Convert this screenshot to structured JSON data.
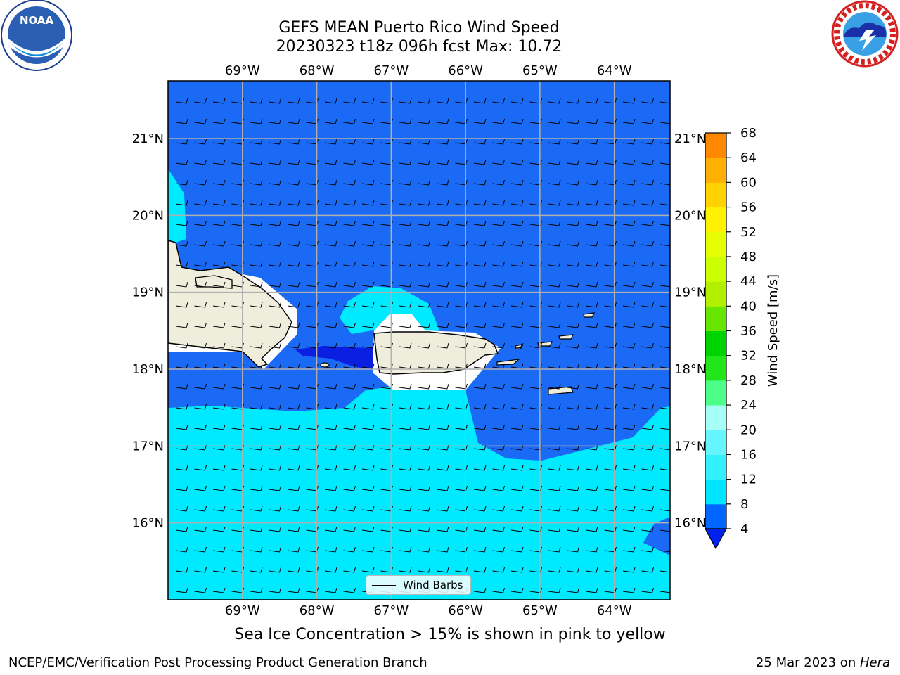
{
  "title_line1": "GEFS MEAN Puerto Rico Wind Speed",
  "title_line2": "20230323 t18z 096h fcst   Max: 10.72",
  "bottom_note": "Sea Ice Concentration > 15% is shown in pink to yellow",
  "footer_left": "NCEP/EMC/Verification Post Processing Product Generation Branch",
  "footer_date": "25 Mar 2023 on ",
  "footer_machine": "Hera",
  "legend_label": "Wind Barbs",
  "colorbar_label": "Wind Speed [m/s]",
  "noaa_logo_text": "NOAA",
  "map": {
    "lon_labels": [
      "69°W",
      "68°W",
      "67°W",
      "66°W",
      "65°W",
      "64°W"
    ],
    "lat_labels": [
      "21°N",
      "20°N",
      "19°N",
      "18°N",
      "17°N",
      "16°N"
    ],
    "lon_values": [
      -69,
      -68,
      -67,
      -66,
      -65,
      -64
    ],
    "lat_values": [
      21,
      20,
      19,
      18,
      17,
      16
    ],
    "lon_range": [
      -70.0,
      -63.25
    ],
    "lat_range": [
      15.0,
      21.75
    ]
  },
  "colorbar": {
    "ticks": [
      "68",
      "64",
      "60",
      "56",
      "52",
      "48",
      "44",
      "40",
      "36",
      "32",
      "28",
      "24",
      "20",
      "16",
      "12",
      "8",
      "4"
    ],
    "levels": [
      4,
      8,
      12,
      16,
      20,
      24,
      28,
      32,
      36,
      40,
      44,
      48,
      52,
      56,
      60,
      64,
      68
    ],
    "colors": [
      "#0066ff",
      "#00e5ff",
      "#33f0ff",
      "#66f5ff",
      "#a6fff7",
      "#4dff88",
      "#22e61a",
      "#00d400",
      "#66e600",
      "#b2f000",
      "#ccff00",
      "#e6ff00",
      "#fff200",
      "#ffd200",
      "#ffb000",
      "#ff8800",
      "#ff5a00",
      "#ff2e00",
      "#ff0000"
    ],
    "under_color": "#0022ee"
  },
  "colors": {
    "ocean_mid": "#1b6af5",
    "ocean_low": "#00eaff",
    "ocean_verylow": "#0a1fe0",
    "land": "#efeddc",
    "grid": "#b0b0b0"
  }
}
